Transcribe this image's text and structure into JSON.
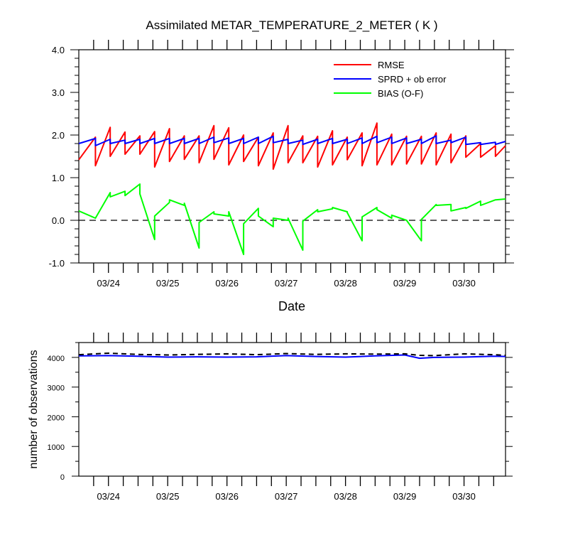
{
  "chart_data": [
    {
      "type": "line",
      "title": "Assimilated METAR_TEMPERATURE_2_METER ( K )",
      "xlabel": "Date",
      "ylabel": "",
      "ylim": [
        -1.0,
        4.0
      ],
      "yticks": [
        "-1.0",
        "0.0",
        "1.0",
        "2.0",
        "3.0",
        "4.0"
      ],
      "xlim": [
        0,
        7.2
      ],
      "x_tick_labels": [
        "03/24",
        "03/25",
        "03/26",
        "03/27",
        "03/28",
        "03/29",
        "03/30"
      ],
      "x_tick_positions": [
        0.5,
        1.5,
        2.5,
        3.5,
        4.5,
        5.5,
        6.5
      ],
      "legend_position": "top-right",
      "reference_line": {
        "y": 0.0,
        "style": "dashed",
        "color": "#000000"
      },
      "series": [
        {
          "name": "RMSE",
          "color": "#ff0000",
          "x": [
            0.0,
            0.28,
            0.28,
            0.53,
            0.53,
            0.78,
            0.78,
            1.03,
            1.03,
            1.28,
            1.28,
            1.53,
            1.53,
            1.78,
            1.78,
            2.03,
            2.03,
            2.28,
            2.28,
            2.53,
            2.53,
            2.78,
            2.78,
            3.03,
            3.03,
            3.28,
            3.28,
            3.53,
            3.53,
            3.78,
            3.78,
            4.03,
            4.03,
            4.28,
            4.28,
            4.53,
            4.53,
            4.78,
            4.78,
            5.03,
            5.03,
            5.28,
            5.28,
            5.53,
            5.53,
            5.78,
            5.78,
            6.03,
            6.03,
            6.28,
            6.28,
            6.53,
            6.53,
            6.78,
            6.78,
            7.03,
            7.03,
            7.2
          ],
          "y": [
            1.42,
            1.95,
            1.28,
            2.18,
            1.5,
            2.07,
            1.55,
            1.98,
            1.55,
            2.08,
            1.25,
            2.15,
            1.38,
            1.98,
            1.43,
            1.98,
            1.35,
            2.22,
            1.43,
            2.17,
            1.3,
            2.0,
            1.38,
            1.95,
            1.28,
            2.05,
            1.2,
            2.22,
            1.35,
            1.98,
            1.35,
            1.97,
            1.25,
            2.1,
            1.3,
            1.95,
            1.42,
            2.05,
            1.28,
            2.28,
            1.3,
            2.02,
            1.3,
            1.97,
            1.32,
            1.97,
            1.32,
            2.05,
            1.3,
            2.02,
            1.35,
            1.98,
            1.48,
            1.8,
            1.48,
            1.75,
            1.5,
            1.75
          ]
        },
        {
          "name": "SPRD + ob error",
          "color": "#0000ff",
          "x": [
            0.0,
            0.28,
            0.28,
            0.53,
            0.53,
            0.78,
            0.78,
            1.03,
            1.03,
            1.28,
            1.28,
            1.53,
            1.53,
            1.78,
            1.78,
            2.03,
            2.03,
            2.28,
            2.28,
            2.53,
            2.53,
            2.78,
            2.78,
            3.03,
            3.03,
            3.28,
            3.28,
            3.53,
            3.53,
            3.78,
            3.78,
            4.03,
            4.03,
            4.28,
            4.28,
            4.53,
            4.53,
            4.78,
            4.78,
            5.03,
            5.03,
            5.28,
            5.28,
            5.53,
            5.53,
            5.78,
            5.78,
            6.03,
            6.03,
            6.28,
            6.28,
            6.53,
            6.53,
            6.78,
            6.78,
            7.03,
            7.03,
            7.2
          ],
          "y": [
            1.8,
            1.92,
            1.75,
            1.9,
            1.8,
            1.88,
            1.8,
            1.9,
            1.8,
            1.92,
            1.8,
            1.92,
            1.8,
            1.92,
            1.8,
            1.92,
            1.8,
            1.95,
            1.82,
            1.93,
            1.8,
            1.92,
            1.8,
            1.95,
            1.8,
            1.97,
            1.82,
            1.9,
            1.8,
            1.88,
            1.78,
            1.9,
            1.8,
            1.92,
            1.8,
            1.9,
            1.8,
            1.93,
            1.8,
            1.97,
            1.82,
            1.95,
            1.8,
            1.93,
            1.8,
            1.9,
            1.8,
            1.98,
            1.8,
            1.88,
            1.82,
            1.95,
            1.78,
            1.82,
            1.78,
            1.83,
            1.78,
            1.85
          ]
        },
        {
          "name": "BIAS (O-F)",
          "color": "#00ff00",
          "x": [
            0.0,
            0.28,
            0.53,
            0.53,
            0.78,
            0.78,
            1.03,
            1.03,
            1.28,
            1.28,
            1.53,
            1.53,
            1.78,
            1.78,
            2.03,
            2.03,
            2.28,
            2.28,
            2.53,
            2.53,
            2.78,
            2.78,
            3.03,
            3.03,
            3.28,
            3.28,
            3.53,
            3.53,
            3.78,
            3.78,
            4.03,
            4.03,
            4.28,
            4.28,
            4.53,
            4.53,
            4.78,
            4.78,
            5.03,
            5.03,
            5.28,
            5.28,
            5.53,
            5.53,
            5.78,
            5.78,
            6.03,
            6.03,
            6.28,
            6.28,
            6.53,
            6.53,
            6.78,
            6.78,
            7.03,
            7.03,
            7.2
          ],
          "y": [
            0.22,
            0.05,
            0.65,
            0.55,
            0.68,
            0.58,
            0.85,
            0.62,
            -0.45,
            0.1,
            0.42,
            0.48,
            0.35,
            0.4,
            -0.65,
            -0.05,
            0.2,
            0.15,
            0.1,
            0.2,
            -0.8,
            -0.08,
            0.28,
            0.1,
            -0.15,
            0.05,
            0.0,
            0.05,
            -0.7,
            -0.02,
            0.25,
            0.2,
            0.27,
            0.3,
            0.2,
            0.18,
            -0.48,
            0.08,
            0.3,
            0.25,
            0.05,
            0.12,
            0.0,
            0.0,
            -0.48,
            0.02,
            0.37,
            0.35,
            0.37,
            0.22,
            0.3,
            0.28,
            0.45,
            0.35,
            0.48,
            0.48,
            0.5
          ]
        }
      ]
    },
    {
      "type": "line",
      "title": "",
      "xlabel": "",
      "ylabel": "number of observations",
      "ylim": [
        0,
        4500
      ],
      "yticks": [
        "0",
        "1000",
        "2000",
        "3000",
        "4000"
      ],
      "xlim": [
        0,
        7.2
      ],
      "x_tick_labels": [
        "03/24",
        "03/25",
        "03/26",
        "03/27",
        "03/28",
        "03/29",
        "03/30"
      ],
      "x_tick_positions": [
        0.5,
        1.5,
        2.5,
        3.5,
        4.5,
        5.5,
        6.5
      ],
      "series": [
        {
          "color": "#0000ff",
          "style": "solid",
          "x": [
            0.0,
            0.5,
            1.0,
            1.5,
            2.0,
            2.5,
            3.0,
            3.5,
            4.0,
            4.5,
            5.0,
            5.5,
            5.75,
            6.0,
            6.5,
            7.0,
            7.2
          ],
          "y": [
            4050,
            4060,
            4040,
            4010,
            4020,
            4010,
            4020,
            4060,
            4030,
            4010,
            4050,
            4080,
            3970,
            4000,
            4010,
            4040,
            4030
          ]
        },
        {
          "color": "#000000",
          "style": "dashed",
          "x": [
            0.0,
            0.5,
            1.0,
            1.5,
            2.0,
            2.5,
            3.0,
            3.5,
            4.0,
            4.5,
            5.0,
            5.5,
            5.75,
            6.0,
            6.5,
            7.0,
            7.2
          ],
          "y": [
            4090,
            4140,
            4100,
            4080,
            4100,
            4120,
            4090,
            4130,
            4100,
            4120,
            4110,
            4120,
            4070,
            4060,
            4120,
            4090,
            4070
          ]
        }
      ]
    }
  ]
}
